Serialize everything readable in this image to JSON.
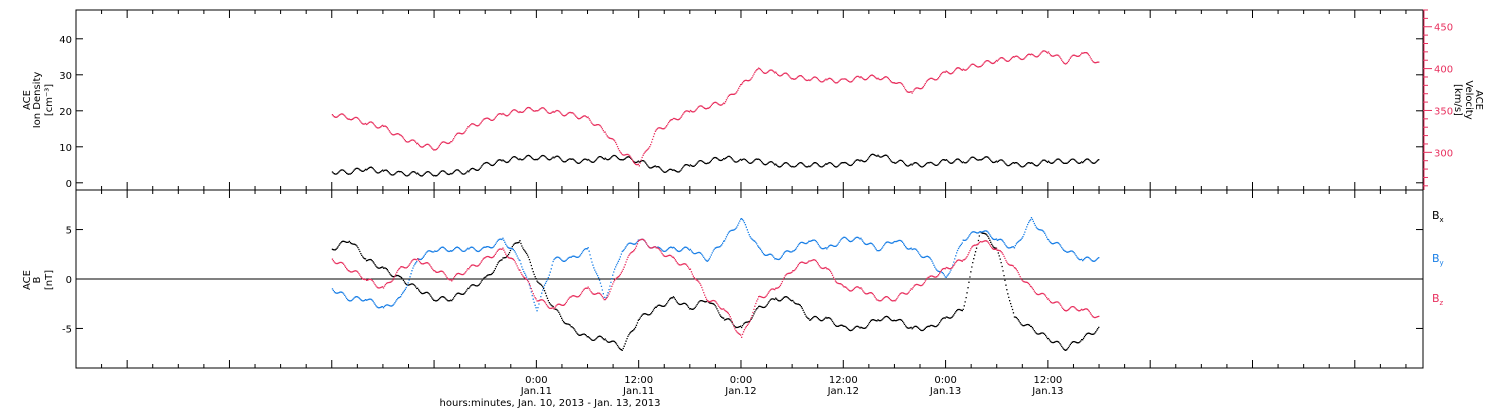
{
  "figure": {
    "xlabel": "hours:minutes, Jan. 10, 2013 - Jan. 13, 2013",
    "x_range_hours": [
      -30,
      128
    ]
  },
  "x_ticks": [
    {
      "hours": 24,
      "time": "0:00",
      "date": "Jan.11"
    },
    {
      "hours": 36,
      "time": "12:00",
      "date": "Jan.11"
    },
    {
      "hours": 48,
      "time": "0:00",
      "date": "Jan.12"
    },
    {
      "hours": 60,
      "time": "12:00",
      "date": "Jan.12"
    },
    {
      "hours": 72,
      "time": "0:00",
      "date": "Jan.13"
    },
    {
      "hours": 84,
      "time": "12:00",
      "date": "Jan.13"
    }
  ],
  "colors": {
    "black": "#000000",
    "blue": "#1a7fe6",
    "red": "#e8315f",
    "velocity_axis": "#e8315f"
  },
  "chart_data": [
    {
      "type": "scatter",
      "panel": "top",
      "ylabel_left": [
        "ACE",
        "Ion Density",
        "[cm⁻³]"
      ],
      "ylabel_right": [
        "ACE",
        "Velocity",
        "[km/s]"
      ],
      "ylim_left": [
        -2,
        48
      ],
      "ylim_right": [
        255,
        470
      ],
      "yticks_left": [
        0,
        10,
        20,
        30,
        40
      ],
      "yticks_right": [
        300,
        350,
        400,
        450
      ],
      "series": [
        {
          "key": "density",
          "axis": "left",
          "color": "#000000",
          "x": [
            0,
            2,
            4,
            6,
            8,
            10,
            12,
            14,
            16,
            18,
            20,
            22,
            24,
            26,
            28,
            30,
            32,
            34,
            36,
            38,
            40,
            42,
            44,
            46,
            48,
            50,
            52,
            54,
            56,
            58,
            60,
            62,
            64,
            66,
            68,
            70,
            72,
            74,
            76,
            78,
            80,
            82,
            84,
            86,
            88,
            90
          ],
          "y": [
            3,
            3,
            4,
            3,
            2.5,
            2.5,
            2.5,
            3,
            3,
            5,
            6,
            7,
            7,
            7,
            6,
            6,
            7,
            7,
            6,
            4,
            3,
            5,
            6,
            7,
            6,
            6,
            5,
            5,
            5,
            5,
            5,
            6,
            8,
            6,
            5,
            5,
            6,
            6,
            7,
            6,
            5,
            5,
            6,
            6,
            6,
            6
          ]
        },
        {
          "key": "velocity",
          "axis": "right",
          "color": "#e8315f",
          "x": [
            0,
            2,
            4,
            6,
            8,
            10,
            12,
            14,
            16,
            18,
            20,
            22,
            24,
            26,
            28,
            30,
            32,
            34,
            36,
            38,
            40,
            42,
            44,
            46,
            48,
            50,
            52,
            54,
            56,
            58,
            60,
            62,
            64,
            66,
            68,
            70,
            72,
            74,
            76,
            78,
            80,
            82,
            84,
            86,
            88,
            90
          ],
          "y": [
            345,
            342,
            335,
            330,
            318,
            310,
            305,
            315,
            330,
            338,
            345,
            350,
            352,
            348,
            345,
            340,
            325,
            300,
            285,
            325,
            338,
            350,
            355,
            360,
            380,
            398,
            395,
            390,
            388,
            386,
            385,
            389,
            390,
            385,
            371,
            385,
            395,
            400,
            405,
            410,
            412,
            415,
            420,
            408,
            420,
            405
          ]
        }
      ]
    },
    {
      "type": "scatter",
      "panel": "bottom",
      "ylabel_left": [
        "ACE",
        "B",
        "[nT]"
      ],
      "ylim": [
        -9,
        9
      ],
      "yticks": [
        -5,
        0,
        5
      ],
      "legend_placement": "right",
      "series": [
        {
          "key": "bx",
          "name": "B",
          "sub": "x",
          "color": "#000000",
          "x": [
            0,
            2,
            4,
            6,
            8,
            10,
            12,
            14,
            16,
            18,
            20,
            22,
            24,
            26,
            28,
            30,
            32,
            34,
            36,
            38,
            40,
            42,
            44,
            46,
            48,
            50,
            52,
            54,
            56,
            58,
            60,
            62,
            64,
            66,
            68,
            70,
            72,
            74,
            76,
            78,
            80,
            82,
            84,
            86,
            88,
            90
          ],
          "y": [
            3,
            4,
            2,
            1,
            0,
            -1,
            -2,
            -2,
            -1,
            0,
            2,
            4,
            0,
            -3,
            -5,
            -6,
            -6,
            -7,
            -4,
            -3,
            -2,
            -3,
            -2,
            -4,
            -5,
            -3,
            -2,
            -2,
            -4,
            -4,
            -5,
            -5,
            -4,
            -4,
            -5,
            -5,
            -4,
            -3,
            5,
            3,
            -4,
            -5,
            -6,
            -7,
            -6,
            -5
          ]
        },
        {
          "key": "by",
          "name": "B",
          "sub": "y",
          "color": "#1a7fe6",
          "x": [
            0,
            2,
            4,
            6,
            8,
            10,
            12,
            14,
            16,
            18,
            20,
            22,
            24,
            26,
            28,
            30,
            32,
            34,
            36,
            38,
            40,
            42,
            44,
            46,
            48,
            50,
            52,
            54,
            56,
            58,
            60,
            62,
            64,
            66,
            68,
            70,
            72,
            74,
            76,
            78,
            80,
            82,
            84,
            86,
            88,
            90
          ],
          "y": [
            -1,
            -2,
            -2,
            -3,
            -2,
            2,
            3,
            3,
            3,
            3,
            4,
            2,
            -3,
            2,
            2,
            3,
            -2,
            3,
            4,
            3,
            3,
            3,
            2,
            4,
            6,
            3,
            2,
            3,
            4,
            3,
            4,
            4,
            3,
            4,
            3,
            2,
            0,
            4,
            5,
            4,
            3,
            6,
            4,
            3,
            2,
            2
          ]
        },
        {
          "key": "bz",
          "name": "B",
          "sub": "z",
          "color": "#e8315f",
          "x": [
            0,
            2,
            4,
            6,
            8,
            10,
            12,
            14,
            16,
            18,
            20,
            22,
            24,
            26,
            28,
            30,
            32,
            34,
            36,
            38,
            40,
            42,
            44,
            46,
            48,
            50,
            52,
            54,
            56,
            58,
            60,
            62,
            64,
            66,
            68,
            70,
            72,
            74,
            76,
            78,
            80,
            82,
            84,
            86,
            88,
            90
          ],
          "y": [
            2,
            1,
            0,
            -1,
            1,
            2,
            1,
            0,
            1,
            2,
            3,
            1,
            -2,
            -3,
            -2,
            -1,
            -2,
            1,
            4,
            3,
            2,
            1,
            -2,
            -3,
            -6,
            -2,
            -1,
            1,
            2,
            1,
            -1,
            -1,
            -2,
            -2,
            -1,
            0,
            1,
            2,
            4,
            3,
            1,
            -1,
            -2,
            -3,
            -3,
            -4
          ]
        }
      ]
    }
  ]
}
